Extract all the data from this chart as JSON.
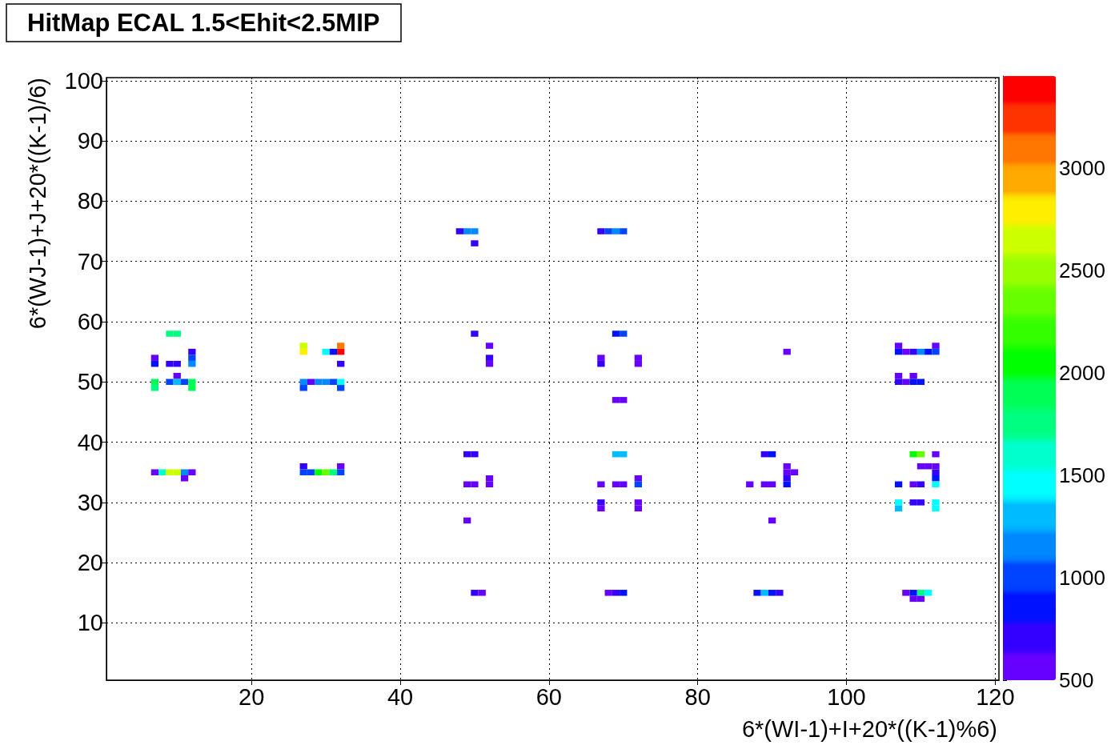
{
  "chart_data": {
    "type": "scatter",
    "title": "HitMap ECAL 1.5<Ehit<2.5MIP",
    "xlabel": "6*(WI-1)+I+20*((K-1)%6)",
    "ylabel": "6*(WJ-1)+J+20*((K-1)/6)",
    "xlim": [
      0.5,
      120.5
    ],
    "ylim": [
      0.5,
      100.5
    ],
    "xticks": [
      20,
      40,
      60,
      80,
      100,
      120
    ],
    "yticks": [
      10,
      20,
      30,
      40,
      50,
      60,
      70,
      80,
      90,
      100
    ],
    "clim": [
      500,
      3450
    ],
    "cticks": [
      500,
      1000,
      1500,
      2000,
      2500,
      3000
    ],
    "grid": true,
    "marker": "square",
    "x": [
      9,
      10,
      7,
      7,
      9,
      10,
      12,
      12,
      12,
      10,
      7,
      9,
      10,
      11,
      12,
      7,
      12,
      7,
      8,
      9,
      10,
      11,
      12,
      11,
      27,
      27,
      30,
      31,
      32,
      32,
      32,
      27,
      28,
      29,
      30,
      31,
      32,
      27,
      32,
      27,
      32,
      27,
      28,
      29,
      30,
      31,
      32,
      48,
      49,
      50,
      50,
      50,
      52,
      52,
      52,
      49,
      50,
      49,
      50,
      52,
      52,
      49,
      50,
      51,
      67,
      68,
      69,
      70,
      69,
      70,
      67,
      67,
      72,
      72,
      69,
      70,
      69,
      70,
      67,
      69,
      70,
      72,
      72,
      67,
      67,
      72,
      72,
      68,
      69,
      70,
      92,
      89,
      90,
      92,
      92,
      93,
      92,
      92,
      87,
      89,
      90,
      90,
      88,
      89,
      90,
      91,
      107,
      112,
      107,
      108,
      109,
      110,
      111,
      112,
      107,
      109,
      107,
      108,
      109,
      110,
      109,
      110,
      112,
      110,
      111,
      112,
      112,
      112,
      107,
      109,
      110,
      112,
      109,
      110,
      107,
      107,
      112,
      112,
      108,
      109,
      110,
      111,
      109,
      110
    ],
    "values": [
      58,
      58,
      54,
      53,
      53,
      53,
      55,
      54,
      53,
      51,
      50,
      50,
      50,
      50,
      50,
      49,
      49,
      35,
      35,
      35,
      35,
      35,
      35,
      34,
      56,
      55,
      55,
      55,
      55,
      56,
      53,
      50,
      50,
      50,
      50,
      50,
      50,
      49,
      49,
      36,
      36,
      35,
      35,
      35,
      35,
      35,
      35,
      75,
      75,
      75,
      73,
      58,
      56,
      54,
      53,
      38,
      38,
      33,
      33,
      34,
      33,
      27,
      15,
      15,
      75,
      75,
      75,
      75,
      58,
      58,
      54,
      53,
      54,
      53,
      47,
      47,
      38,
      38,
      33,
      33,
      33,
      34,
      33,
      30,
      29,
      30,
      29,
      15,
      15,
      15,
      55,
      38,
      38,
      36,
      35,
      35,
      34,
      33,
      33,
      33,
      33,
      27,
      15,
      15,
      15,
      15,
      56,
      56,
      55,
      55,
      55,
      55,
      55,
      55,
      51,
      51,
      50,
      50,
      50,
      50,
      38,
      38,
      38,
      36,
      36,
      36,
      35,
      34,
      33,
      33,
      33,
      33,
      30,
      30,
      30,
      29,
      30,
      29,
      15,
      15,
      15,
      15,
      14,
      14
    ],
    "cvalues": [
      1750,
      1750,
      550,
      850,
      700,
      700,
      700,
      1000,
      1150,
      550,
      1900,
      1000,
      1300,
      1000,
      1900,
      1700,
      1900,
      550,
      1600,
      2650,
      2650,
      1150,
      550,
      550,
      2650,
      2800,
      1450,
      850,
      3400,
      3100,
      700,
      1150,
      550,
      1150,
      1150,
      1000,
      1450,
      1000,
      1000,
      700,
      550,
      1000,
      1000,
      2050,
      2350,
      1750,
      1000,
      700,
      1150,
      1150,
      700,
      700,
      550,
      700,
      550,
      700,
      700,
      550,
      550,
      550,
      550,
      550,
      700,
      550,
      700,
      1000,
      1150,
      1000,
      850,
      1000,
      550,
      700,
      550,
      550,
      550,
      550,
      1300,
      1300,
      550,
      550,
      550,
      550,
      1000,
      700,
      550,
      550,
      550,
      550,
      700,
      850,
      550,
      700,
      850,
      550,
      550,
      550,
      700,
      850,
      550,
      550,
      550,
      550,
      850,
      1300,
      850,
      700,
      550,
      550,
      850,
      550,
      700,
      1150,
      850,
      1000,
      550,
      550,
      700,
      550,
      850,
      850,
      2050,
      2350,
      550,
      550,
      550,
      550,
      700,
      850,
      850,
      550,
      700,
      1450,
      700,
      700,
      1450,
      1300,
      1450,
      1450,
      550,
      850,
      1700,
      1450,
      550,
      550
    ]
  }
}
